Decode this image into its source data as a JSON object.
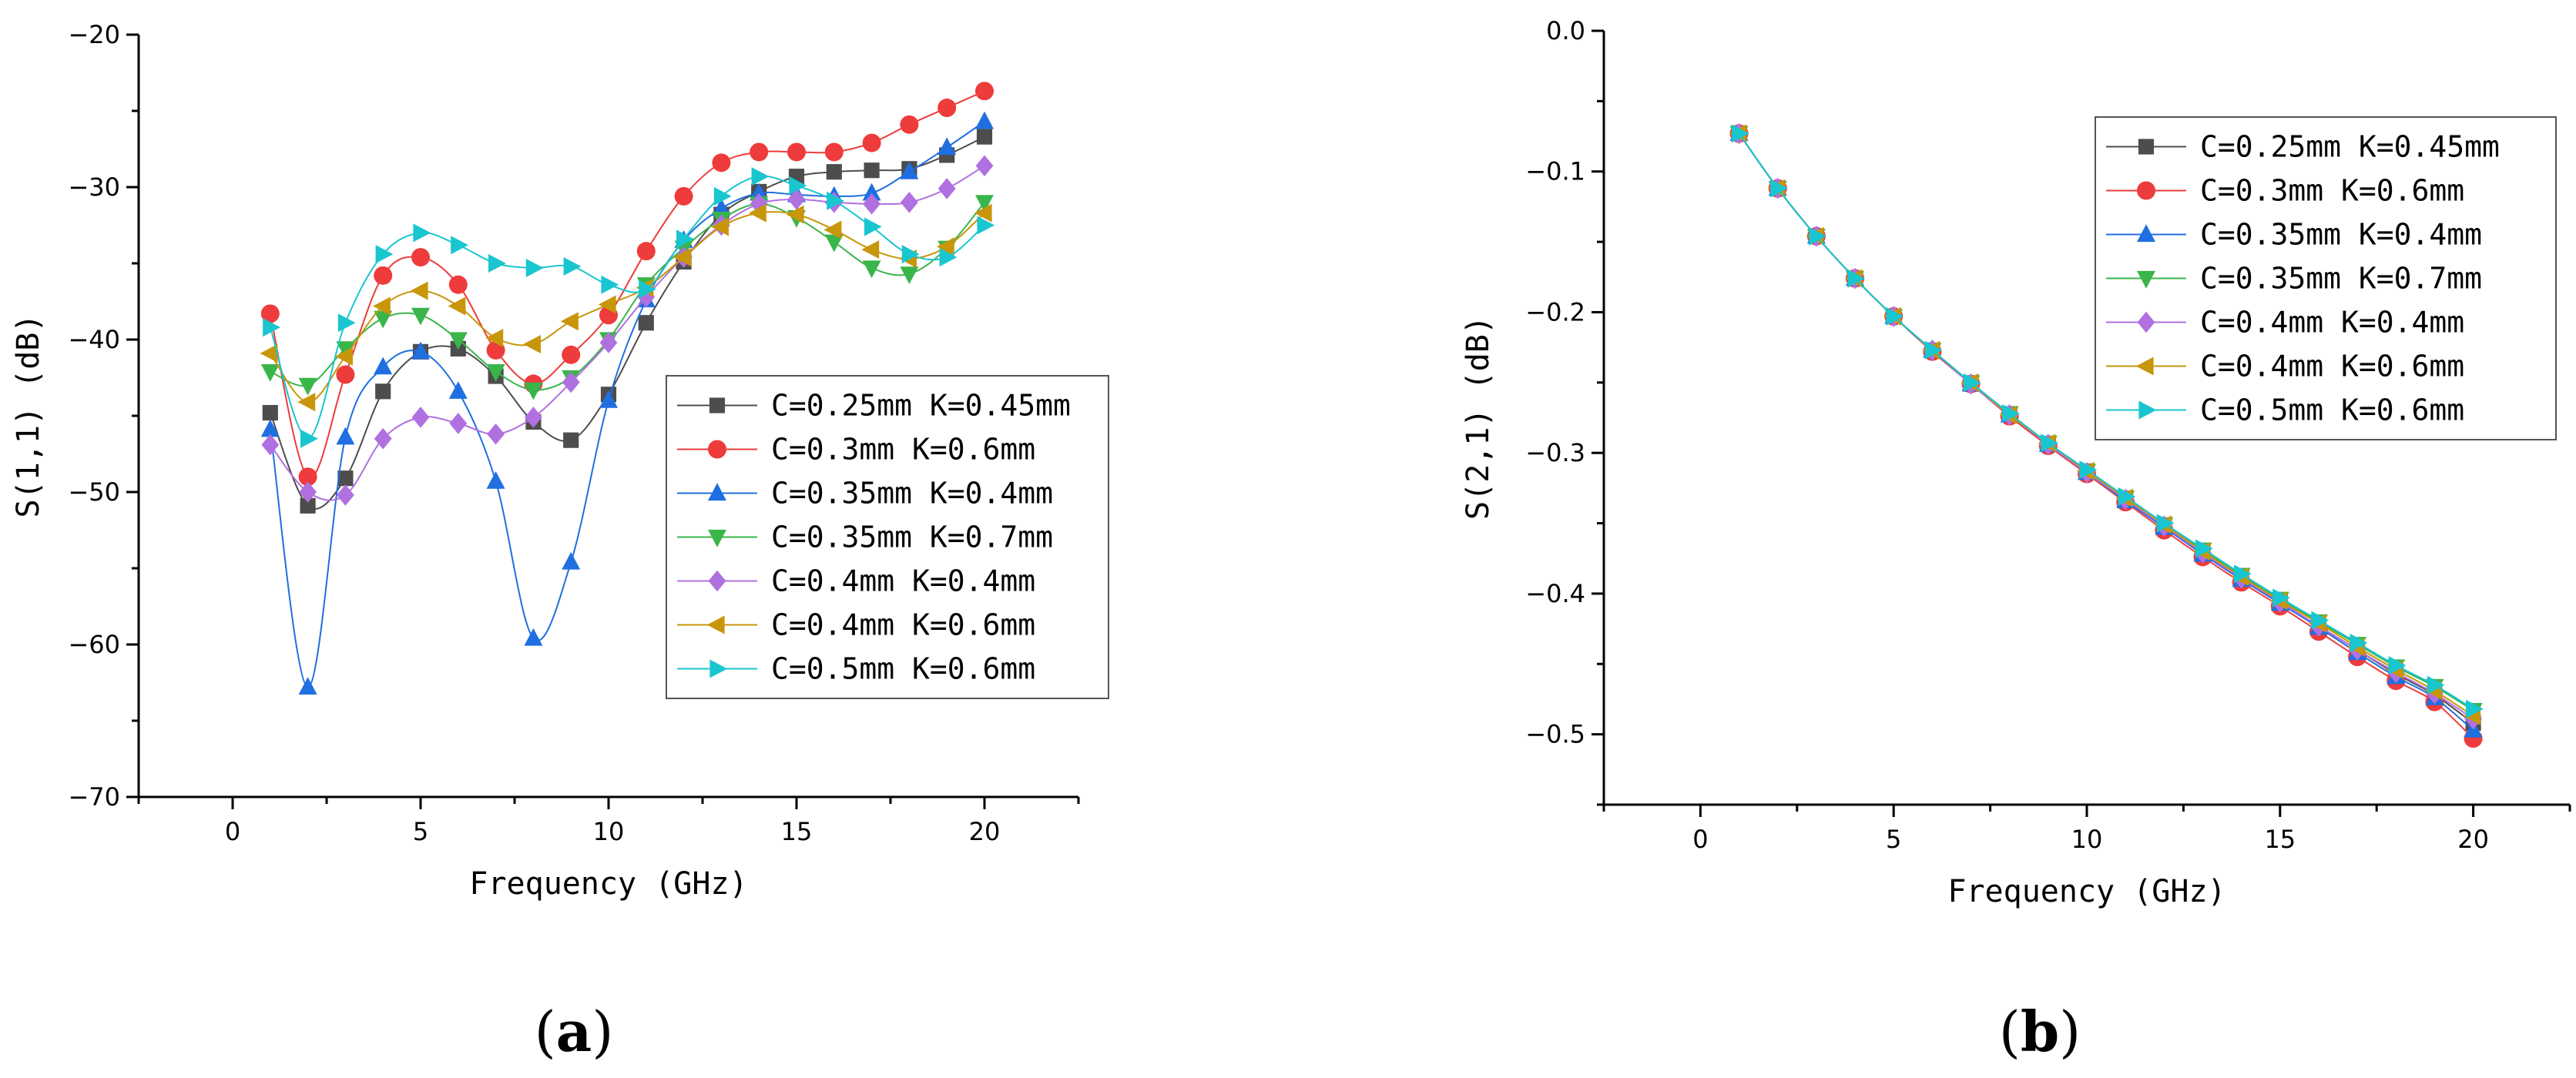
{
  "figure": {
    "panels": [
      {
        "id": "a",
        "label_prefix": "(",
        "label_letter": "a",
        "label_suffix": ")"
      },
      {
        "id": "b",
        "label_prefix": "(",
        "label_letter": "b",
        "label_suffix": ")"
      }
    ]
  },
  "series_styles": [
    {
      "name": "C=0.25mm K=0.45mm",
      "color": "#4d4d4d",
      "marker": "square"
    },
    {
      "name": "C=0.3mm K=0.6mm",
      "color": "#ee3b3b",
      "marker": "circle"
    },
    {
      "name": "C=0.35mm K=0.4mm",
      "color": "#1f6fe0",
      "marker": "triangle-up"
    },
    {
      "name": "C=0.35mm K=0.7mm",
      "color": "#3ab54a",
      "marker": "triangle-down"
    },
    {
      "name": "C=0.4mm K=0.4mm",
      "color": "#b070e0",
      "marker": "diamond"
    },
    {
      "name": "C=0.4mm K=0.6mm",
      "color": "#c8960a",
      "marker": "triangle-left"
    },
    {
      "name": "C=0.5mm K=0.6mm",
      "color": "#19c6d0",
      "marker": "triangle-right"
    }
  ],
  "chart_data": [
    {
      "type": "line",
      "title": "",
      "xlabel": "Frequency (GHz)",
      "ylabel": "S(1,1) (dB)",
      "xlim": [
        -2.5,
        22.5
      ],
      "ylim": [
        -70,
        -20
      ],
      "xticks": [
        0,
        5,
        10,
        15,
        20
      ],
      "yticks": [
        -70,
        -60,
        -50,
        -40,
        -30,
        -20
      ],
      "grid": false,
      "legend_position": "center-right",
      "x": [
        1,
        2,
        3,
        4,
        5,
        6,
        7,
        8,
        9,
        10,
        11,
        12,
        13,
        14,
        15,
        16,
        17,
        18,
        19,
        20
      ],
      "series": [
        {
          "name": "C=0.25mm K=0.45mm",
          "values": [
            -44.8,
            -50.9,
            -49.1,
            -43.4,
            -40.8,
            -40.6,
            -42.4,
            -45.4,
            -46.6,
            -43.6,
            -38.9,
            -34.9,
            -31.8,
            -30.3,
            -29.3,
            -29,
            -28.9,
            -28.8,
            -27.9,
            -26.7
          ]
        },
        {
          "name": "C=0.3mm K=0.6mm",
          "values": [
            -38.3,
            -49.0,
            -42.3,
            -35.8,
            -34.6,
            -36.4,
            -40.7,
            -42.9,
            -41.0,
            -38.4,
            -34.2,
            -30.6,
            -28.4,
            -27.7,
            -27.7,
            -27.7,
            -27.1,
            -25.9,
            -24.8,
            -23.7
          ]
        },
        {
          "name": "C=0.35mm K=0.4mm",
          "values": [
            -45.9,
            -62.8,
            -46.4,
            -41.8,
            -40.8,
            -43.4,
            -49.3,
            -59.6,
            -54.6,
            -44.0,
            -37.4,
            -33.5,
            -31.4,
            -30.4,
            -30.5,
            -30.6,
            -30.4,
            -29.0,
            -27.4,
            -25.7
          ]
        },
        {
          "name": "C=0.35mm K=0.7mm",
          "values": [
            -42.1,
            -43.0,
            -40.6,
            -38.6,
            -38.4,
            -40.0,
            -42.1,
            -43.3,
            -42.5,
            -40.0,
            -36.4,
            -34.0,
            -32.1,
            -31.1,
            -32.0,
            -33.6,
            -35.3,
            -35.7,
            -34.0,
            -31.0
          ]
        },
        {
          "name": "C=0.4mm K=0.4mm",
          "values": [
            -46.9,
            -50.0,
            -50.2,
            -46.5,
            -45.1,
            -45.5,
            -46.2,
            -45.1,
            -42.8,
            -40.2,
            -37.2,
            -34.6,
            -32.5,
            -31.1,
            -30.8,
            -31.0,
            -31.1,
            -31.0,
            -30.1,
            -28.6
          ]
        },
        {
          "name": "C=0.4mm K=0.6mm",
          "values": [
            -40.9,
            -44.1,
            -41.1,
            -37.8,
            -36.8,
            -37.8,
            -39.9,
            -40.3,
            -38.8,
            -37.7,
            -36.6,
            -34.6,
            -32.6,
            -31.7,
            -31.8,
            -32.8,
            -34.1,
            -34.7,
            -33.9,
            -31.7
          ]
        },
        {
          "name": "C=0.5mm K=0.6mm",
          "values": [
            -39.2,
            -46.5,
            -38.9,
            -34.4,
            -33.0,
            -33.8,
            -35.0,
            -35.3,
            -35.2,
            -36.4,
            -36.7,
            -33.4,
            -30.6,
            -29.3,
            -29.9,
            -30.9,
            -32.6,
            -34.4,
            -34.6,
            -32.5
          ]
        }
      ]
    },
    {
      "type": "line",
      "title": "",
      "xlabel": "Frequency (GHz)",
      "ylabel": "S(2,1) (dB)",
      "xlim": [
        -2.5,
        22.5
      ],
      "ylim": [
        -0.55,
        0.0
      ],
      "xticks": [
        0,
        5,
        10,
        15,
        20
      ],
      "yticks": [
        -0.5,
        -0.4,
        -0.3,
        -0.2,
        -0.1,
        0.0
      ],
      "ytick_labels": [
        "-0.5",
        "-0.4",
        "-0.3",
        "-0.2",
        "-0.1",
        "0.0"
      ],
      "grid": false,
      "legend_position": "top-right",
      "x": [
        1,
        2,
        3,
        4,
        5,
        6,
        7,
        8,
        9,
        10,
        11,
        12,
        13,
        14,
        15,
        16,
        17,
        18,
        19,
        20
      ],
      "series": [
        {
          "name": "C=0.25mm K=0.45mm",
          "values": [
            -0.073,
            -0.112,
            -0.146,
            -0.176,
            -0.203,
            -0.227,
            -0.251,
            -0.273,
            -0.294,
            -0.313,
            -0.333,
            -0.352,
            -0.371,
            -0.389,
            -0.406,
            -0.423,
            -0.44,
            -0.457,
            -0.472,
            -0.492
          ]
        },
        {
          "name": "C=0.3mm K=0.6mm",
          "values": [
            -0.073,
            -0.112,
            -0.146,
            -0.176,
            -0.203,
            -0.228,
            -0.251,
            -0.274,
            -0.295,
            -0.315,
            -0.335,
            -0.355,
            -0.374,
            -0.392,
            -0.409,
            -0.427,
            -0.445,
            -0.462,
            -0.477,
            -0.503
          ]
        },
        {
          "name": "C=0.35mm K=0.4mm",
          "values": [
            -0.073,
            -0.112,
            -0.146,
            -0.176,
            -0.203,
            -0.227,
            -0.251,
            -0.273,
            -0.294,
            -0.314,
            -0.334,
            -0.353,
            -0.372,
            -0.39,
            -0.407,
            -0.424,
            -0.442,
            -0.459,
            -0.474,
            -0.497
          ]
        },
        {
          "name": "C=0.35mm K=0.7mm",
          "values": [
            -0.073,
            -0.112,
            -0.146,
            -0.176,
            -0.203,
            -0.227,
            -0.25,
            -0.272,
            -0.293,
            -0.313,
            -0.332,
            -0.351,
            -0.369,
            -0.387,
            -0.404,
            -0.42,
            -0.436,
            -0.452,
            -0.466,
            -0.483
          ]
        },
        {
          "name": "C=0.4mm K=0.4mm",
          "values": [
            -0.073,
            -0.112,
            -0.146,
            -0.176,
            -0.203,
            -0.227,
            -0.251,
            -0.273,
            -0.294,
            -0.314,
            -0.333,
            -0.352,
            -0.371,
            -0.389,
            -0.406,
            -0.423,
            -0.44,
            -0.456,
            -0.471,
            -0.489
          ]
        },
        {
          "name": "C=0.4mm K=0.6mm",
          "values": [
            -0.073,
            -0.112,
            -0.146,
            -0.176,
            -0.203,
            -0.227,
            -0.25,
            -0.273,
            -0.293,
            -0.313,
            -0.332,
            -0.351,
            -0.37,
            -0.388,
            -0.405,
            -0.421,
            -0.438,
            -0.454,
            -0.469,
            -0.487
          ]
        },
        {
          "name": "C=0.5mm K=0.6mm",
          "values": [
            -0.073,
            -0.112,
            -0.146,
            -0.176,
            -0.203,
            -0.227,
            -0.25,
            -0.272,
            -0.293,
            -0.312,
            -0.331,
            -0.35,
            -0.368,
            -0.386,
            -0.403,
            -0.419,
            -0.435,
            -0.451,
            -0.465,
            -0.482
          ]
        }
      ]
    }
  ]
}
